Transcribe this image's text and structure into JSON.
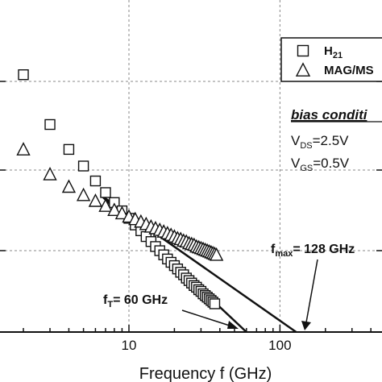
{
  "chart_data": {
    "type": "scatter",
    "x_scale": "log",
    "xlabel": "Frequency f (GHz)",
    "x_tick_labels": [
      "10",
      "100"
    ],
    "series": [
      {
        "name": "H21",
        "marker": "square",
        "x": [
          2,
          3,
          4,
          5,
          6,
          7,
          8,
          9,
          10,
          11,
          12,
          13,
          14,
          15,
          16,
          17,
          18,
          19,
          20,
          21,
          22,
          23,
          24,
          25,
          26,
          27,
          28,
          29,
          30,
          31,
          32,
          33,
          34,
          35,
          36,
          37
        ],
        "y": [
          31,
          25,
          22,
          20,
          18.2,
          16.8,
          15.6,
          14.6,
          13.7,
          12.9,
          12.2,
          11.5,
          10.9,
          10.3,
          9.8,
          9.3,
          8.8,
          8.4,
          8.0,
          7.6,
          7.2,
          6.9,
          6.5,
          6.2,
          5.9,
          5.6,
          5.4,
          5.1,
          4.9,
          4.6,
          4.4,
          4.2,
          4.0,
          3.8,
          3.6,
          3.4
        ]
      },
      {
        "name": "MAG/MSG",
        "marker": "triangle",
        "x": [
          2,
          3,
          4,
          5,
          6,
          7,
          8,
          9,
          10,
          11,
          12,
          13,
          14,
          15,
          16,
          17,
          18,
          19,
          20,
          21,
          22,
          23,
          24,
          25,
          26,
          27,
          28,
          29,
          30,
          31,
          32,
          33,
          34,
          35,
          36,
          37,
          38
        ],
        "y": [
          22,
          19,
          17.5,
          16.5,
          15.8,
          15.2,
          14.7,
          14.3,
          13.9,
          13.6,
          13.3,
          13.0,
          12.7,
          12.5,
          12.3,
          12.1,
          11.9,
          11.7,
          11.5,
          11.3,
          11.2,
          11.0,
          10.9,
          10.7,
          10.6,
          10.5,
          10.3,
          10.2,
          10.1,
          10.0,
          9.9,
          9.8,
          9.7,
          9.6,
          9.5,
          9.4,
          9.3
        ]
      }
    ],
    "extrapolation_lines": [
      {
        "name": "fT",
        "from": [
          6.5,
          16.5
        ],
        "to": [
          60,
          0
        ]
      },
      {
        "name": "fmax",
        "from": [
          6.5,
          16.5
        ],
        "to": [
          128,
          0
        ]
      }
    ],
    "y_range": [
      0,
      40
    ],
    "x_range": [
      1.4,
      474
    ],
    "legend": {
      "items": [
        {
          "marker": "square",
          "label_main": "H",
          "label_sub": "21"
        },
        {
          "marker": "triangle",
          "label_main": "MAG/MS",
          "label_sub": ""
        }
      ],
      "placement": "top-right"
    },
    "bias": {
      "title": "bias conditi",
      "lines": [
        {
          "main": "V",
          "sub": "DS",
          "rest": "=2.5V"
        },
        {
          "main": "V",
          "sub": "GS",
          "rest": "=0.5V"
        }
      ]
    },
    "annotations": {
      "ft": {
        "main": "f",
        "sub": "T",
        "rest": "= 60 GHz"
      },
      "fmax": {
        "main": "f",
        "sub": "max",
        "rest": "= 128 GHz"
      }
    },
    "grid": true
  }
}
